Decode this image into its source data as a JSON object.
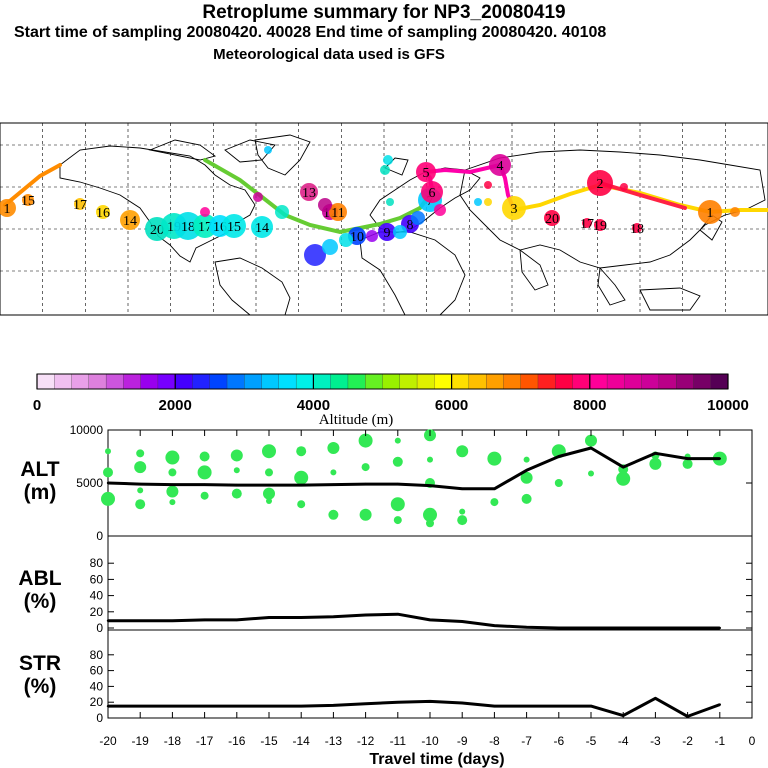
{
  "header": {
    "title": "Retroplume summary for NP3_20080419",
    "sampling": "Start time of sampling 20080420. 40028     End time of sampling 20080420. 40108",
    "met": "Meteorological data used is GFS"
  },
  "map": {
    "labels": [
      "1",
      "15",
      "17",
      "16",
      "14",
      "20",
      "19",
      "18",
      "17",
      "16",
      "15",
      "14",
      "13",
      "12",
      "11",
      "10",
      "9",
      "8",
      "7",
      "6",
      "5",
      "4",
      "3",
      "2",
      "1",
      "20",
      "19",
      "18",
      "17"
    ],
    "plume_path_colors": [
      "#ff8c00",
      "#66cc33",
      "#ff00aa",
      "#ffd700",
      "#ff2244"
    ]
  },
  "colorbar": {
    "colors": [
      "#f7e0f7",
      "#f0c0f0",
      "#e8a0e8",
      "#dd80dd",
      "#cc55dd",
      "#bb22dd",
      "#9900ee",
      "#7700ff",
      "#4400ff",
      "#2222ff",
      "#0044ff",
      "#0077ff",
      "#00a0ff",
      "#00c8ff",
      "#00e0ff",
      "#00f0e8",
      "#00f0c0",
      "#00f090",
      "#22f055",
      "#66f022",
      "#99f000",
      "#c0f000",
      "#e0f000",
      "#ffff00",
      "#ffe000",
      "#ffc000",
      "#ffa000",
      "#ff8000",
      "#ff5500",
      "#ff2020",
      "#ff0044",
      "#ff0077",
      "#ff0099",
      "#ee0099",
      "#dd0099",
      "#cc0099",
      "#bb0088",
      "#990077",
      "#770066",
      "#550055"
    ],
    "ticks": [
      "0",
      "2000",
      "4000",
      "6000",
      "8000",
      "10000"
    ],
    "label": "Altitude  (m)"
  },
  "chart_data": {
    "type": "line",
    "xlabel": "Travel time (days)",
    "x_ticks": [
      "-20",
      "-19",
      "-18",
      "-17",
      "-16",
      "-15",
      "-14",
      "-13",
      "-12",
      "-11",
      "-10",
      "-9",
      "-8",
      "-7",
      "-6",
      "-5",
      "-4",
      "-3",
      "-2",
      "-1",
      "0"
    ],
    "xlim": [
      -20,
      0
    ],
    "panels": [
      {
        "ylabel_top": "ALT",
        "ylabel_bottom": "(m)",
        "y_ticks": [
          "0",
          "5000",
          "10000"
        ],
        "ylim": [
          0,
          10000
        ],
        "x": [
          -20,
          -19,
          -18,
          -17,
          -16,
          -15,
          -14,
          -13,
          -12,
          -11,
          -10,
          -9,
          -8,
          -7,
          -6,
          -5,
          -4,
          -3,
          -2,
          -1
        ],
        "series": [
          {
            "name": "altitude",
            "values": [
              5000,
              4900,
              4850,
              4850,
              4800,
              4800,
              4800,
              4850,
              4900,
              4900,
              4750,
              4450,
              4450,
              6200,
              7500,
              8300,
              6500,
              7800,
              7300,
              7300
            ]
          }
        ],
        "spread_points": [
          [
            -20,
            8000
          ],
          [
            -20,
            6000
          ],
          [
            -20,
            3500
          ],
          [
            -19,
            7800
          ],
          [
            -19,
            6500
          ],
          [
            -19,
            4300
          ],
          [
            -19,
            3000
          ],
          [
            -18,
            7400
          ],
          [
            -18,
            6000
          ],
          [
            -18,
            4200
          ],
          [
            -18,
            3200
          ],
          [
            -17,
            7500
          ],
          [
            -17,
            6000
          ],
          [
            -17,
            3800
          ],
          [
            -16,
            7600
          ],
          [
            -16,
            6200
          ],
          [
            -16,
            4000
          ],
          [
            -15,
            8000
          ],
          [
            -15,
            6000
          ],
          [
            -15,
            4000
          ],
          [
            -15,
            3300
          ],
          [
            -14,
            8000
          ],
          [
            -14,
            5500
          ],
          [
            -14,
            3000
          ],
          [
            -13,
            8300
          ],
          [
            -13,
            6000
          ],
          [
            -13,
            2000
          ],
          [
            -12,
            9000
          ],
          [
            -12,
            6500
          ],
          [
            -12,
            2000
          ],
          [
            -11,
            9000
          ],
          [
            -11,
            7000
          ],
          [
            -11,
            3000
          ],
          [
            -11,
            1500
          ],
          [
            -10,
            9500
          ],
          [
            -10,
            7200
          ],
          [
            -10,
            5000
          ],
          [
            -10,
            2000
          ],
          [
            -10,
            1200
          ],
          [
            -9,
            8000
          ],
          [
            -9,
            2300
          ],
          [
            -9,
            1500
          ],
          [
            -8,
            7300
          ],
          [
            -8,
            3200
          ],
          [
            -7,
            5500
          ],
          [
            -7,
            7200
          ],
          [
            -7,
            3500
          ],
          [
            -6,
            8000
          ],
          [
            -6,
            5000
          ],
          [
            -5,
            9000
          ],
          [
            -5,
            5900
          ],
          [
            -4,
            6300
          ],
          [
            -4,
            5400
          ],
          [
            -3,
            7600
          ],
          [
            -3,
            6800
          ],
          [
            -2,
            7500
          ],
          [
            -2,
            6800
          ],
          [
            -1,
            7300
          ]
        ]
      },
      {
        "ylabel_top": "ABL",
        "ylabel_bottom": "(%)",
        "y_ticks": [
          "0",
          "20",
          "40",
          "60",
          "80"
        ],
        "ylim": [
          0,
          100
        ],
        "x": [
          -20,
          -19,
          -18,
          -17,
          -16,
          -15,
          -14,
          -13,
          -12,
          -11,
          -10,
          -9,
          -8,
          -7,
          -6,
          -5,
          -4,
          -3,
          -2,
          -1
        ],
        "series": [
          {
            "name": "ABL",
            "values": [
              9,
              9,
              9,
              10,
              10,
              13,
              13,
              14,
              16,
              17,
              10,
              8,
              3,
              1,
              0,
              0,
              0,
              0,
              0,
              0
            ]
          }
        ]
      },
      {
        "ylabel_top": "STR",
        "ylabel_bottom": "(%)",
        "y_ticks": [
          "0",
          "20",
          "40",
          "60",
          "80"
        ],
        "ylim": [
          0,
          100
        ],
        "x": [
          -20,
          -19,
          -18,
          -17,
          -16,
          -15,
          -14,
          -13,
          -12,
          -11,
          -10,
          -9,
          -8,
          -7,
          -6,
          -5,
          -4,
          -3,
          -2,
          -1
        ],
        "series": [
          {
            "name": "STR",
            "values": [
              15,
              15,
              15,
              15,
              15,
              15,
              15,
              16,
              18,
              20,
              21,
              19,
              15,
              15,
              15,
              15,
              3,
              25,
              2,
              17
            ]
          }
        ]
      }
    ]
  }
}
